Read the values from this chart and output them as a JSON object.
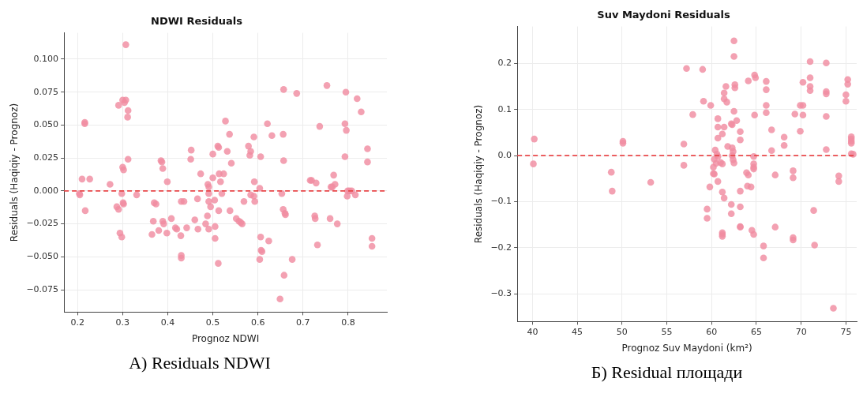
{
  "chart_data": [
    {
      "type": "scatter",
      "title": "NDWI Residuals",
      "xlabel": "Prognoz NDWI",
      "ylabel": "Residuals (Haqiqiy - Prognoz)",
      "xlim": [
        0.17,
        0.886
      ],
      "ylim": [
        -0.092,
        0.12
      ],
      "xticks": [
        0.2,
        0.3,
        0.4,
        0.5,
        0.6,
        0.7,
        0.8
      ],
      "yticks": [
        {
          "value": -0.075,
          "label": "−0.075"
        },
        {
          "value": -0.05,
          "label": "−0.050"
        },
        {
          "value": -0.025,
          "label": "−0.025"
        },
        {
          "value": 0,
          "label": "0.000"
        },
        {
          "value": 0.025,
          "label": "0.025"
        },
        {
          "value": 0.05,
          "label": "0.050"
        },
        {
          "value": 0.075,
          "label": "0.075"
        },
        {
          "value": 0.1,
          "label": "0.100"
        }
      ],
      "grid": true,
      "marker": "circle",
      "ref_lines": [
        {
          "axis": "y",
          "value": 0,
          "color": "#e8474a",
          "line_style": "dashed"
        }
      ],
      "annotations": [
        "A) Residuals NDWI"
      ],
      "series": [
        {
          "color": "#f08ca0",
          "x": [
            0.307,
            0.291,
            0.3,
            0.307,
            0.304,
            0.312,
            0.311,
            0.216,
            0.216,
            0.312,
            0.3,
            0.302,
            0.21,
            0.227,
            0.272,
            0.204,
            0.205,
            0.298,
            0.217,
            0.287,
            0.291,
            0.301,
            0.302,
            0.331,
            0.294,
            0.298,
            0.385,
            0.387,
            0.389,
            0.399,
            0.37,
            0.374,
            0.368,
            0.389,
            0.391,
            0.38,
            0.398,
            0.408,
            0.417,
            0.42,
            0.365,
            0.43,
            0.436,
            0.429,
            0.43,
            0.43,
            0.442,
            0.452,
            0.451,
            0.473,
            0.466,
            0.46,
            0.467,
            0.489,
            0.491,
            0.491,
            0.491,
            0.495,
            0.504,
            0.5,
            0.5,
            0.511,
            0.513,
            0.488,
            0.484,
            0.491,
            0.505,
            0.505,
            0.512,
            0.513,
            0.517,
            0.52,
            0.514,
            0.528,
            0.537,
            0.532,
            0.541,
            0.524,
            0.538,
            0.552,
            0.558,
            0.562,
            0.565,
            0.569,
            0.579,
            0.584,
            0.582,
            0.591,
            0.592,
            0.606,
            0.584,
            0.591,
            0.593,
            0.604,
            0.621,
            0.631,
            0.656,
            0.657,
            0.657,
            0.686,
            0.653,
            0.656,
            0.66,
            0.661,
            0.606,
            0.624,
            0.607,
            0.609,
            0.604,
            0.676,
            0.658,
            0.649,
            0.716,
            0.719,
            0.729,
            0.726,
            0.727,
            0.732,
            0.737,
            0.753,
            0.768,
            0.771,
            0.762,
            0.765,
            0.76,
            0.776,
            0.795,
            0.793,
            0.796,
            0.793,
            0.799,
            0.803,
            0.808,
            0.798,
            0.816,
            0.82,
            0.829,
            0.843,
            0.843,
            0.853,
            0.853
          ],
          "values": [
            0.111,
            0.065,
            0.069,
            0.069,
            0.067,
            0.061,
            0.056,
            0.052,
            0.051,
            0.024,
            0.018,
            0.016,
            0.009,
            0.009,
            0.005,
            -0.002,
            -0.003,
            -0.002,
            -0.015,
            -0.012,
            -0.014,
            -0.009,
            -0.01,
            -0.003,
            -0.032,
            -0.035,
            0.023,
            0.022,
            0.017,
            0.007,
            -0.009,
            -0.01,
            -0.023,
            -0.023,
            -0.025,
            -0.03,
            -0.032,
            -0.021,
            -0.028,
            -0.029,
            -0.033,
            -0.008,
            -0.008,
            -0.034,
            -0.049,
            -0.051,
            -0.028,
            0.031,
            0.024,
            0.013,
            -0.006,
            -0.022,
            -0.029,
            0.005,
            0.003,
            -0.002,
            -0.008,
            -0.012,
            -0.007,
            0.01,
            0.028,
            0.034,
            0.033,
            -0.019,
            -0.025,
            -0.029,
            -0.027,
            -0.036,
            -0.055,
            -0.015,
            0.007,
            -0.002,
            0.013,
            0.053,
            0.043,
            0.03,
            0.021,
            0.013,
            -0.015,
            -0.021,
            -0.023,
            -0.024,
            -0.025,
            -0.008,
            0.034,
            0.03,
            0.027,
            0.041,
            0.007,
            0.026,
            -0.003,
            -0.004,
            -0.008,
            0.002,
            0.051,
            0.042,
            0.043,
            0.023,
            0.077,
            0.074,
            -0.002,
            -0.014,
            -0.017,
            -0.018,
            -0.035,
            -0.038,
            -0.045,
            -0.046,
            -0.052,
            -0.052,
            -0.064,
            -0.082,
            0.008,
            0.008,
            0.006,
            -0.019,
            -0.021,
            -0.041,
            0.049,
            0.08,
            0.012,
            0.005,
            0.003,
            0.003,
            -0.021,
            -0.025,
            0.075,
            0.051,
            0.046,
            0.026,
            0,
            0,
            0,
            -0.004,
            -0.003,
            0.07,
            0.06,
            0.032,
            0.022,
            -0.036,
            -0.042
          ]
        }
      ]
    },
    {
      "type": "scatter",
      "title": "Suv Maydoni Residuals",
      "xlabel": "Prognoz Suv Maydoni (km²)",
      "ylabel": "Residuals (Haqiqiy - Prognoz)",
      "xlim": [
        38.3,
        76.2
      ],
      "ylim": [
        -0.36,
        0.28
      ],
      "xticks": [
        40,
        45,
        50,
        55,
        60,
        65,
        70,
        75
      ],
      "yticks": [
        {
          "value": -0.3,
          "label": "−0.3"
        },
        {
          "value": -0.2,
          "label": "−0.2"
        },
        {
          "value": -0.1,
          "label": "−0.1"
        },
        {
          "value": 0,
          "label": "0.0"
        },
        0.1,
        0.2
      ],
      "grid": true,
      "marker": "circle",
      "ref_lines": [
        {
          "axis": "y",
          "value": 0,
          "color": "#e8474a",
          "line_style": "dashed"
        }
      ],
      "annotations": [
        "Б) Residual площади"
      ],
      "series": [
        {
          "color": "#f08ca0",
          "x": [
            40.2,
            40.1,
            50.1,
            50.1,
            48.8,
            48.9,
            53.2,
            57.2,
            59.0,
            62.5,
            62.5,
            71.0,
            72.8,
            64.8,
            64.9,
            64.1,
            66.1,
            66.1,
            61.6,
            61.4,
            61.4,
            61.7,
            62.6,
            62.6,
            59.1,
            59.9,
            71.0,
            71.0,
            71.0,
            70.2,
            75.2,
            75.2,
            75.0,
            75.0,
            72.8,
            72.8,
            72.8,
            66.1,
            66.1,
            64.8,
            69.3,
            69.9,
            70.2,
            70.2,
            69.9,
            57.9,
            60.7,
            60.7,
            61.4,
            62.5,
            62.8,
            62.2,
            62.3,
            63.2,
            63.2,
            61.2,
            60.7,
            66.7,
            68.1,
            68.1,
            66.7,
            72.8,
            56.9,
            56.9,
            61.8,
            62.3,
            62.4,
            60.4,
            60.6,
            60.7,
            60.3,
            60.5,
            61.0,
            61.2,
            62.3,
            62.4,
            62.5,
            60.2,
            60.2,
            60.3,
            64.7,
            64.7,
            64.7,
            64.7,
            63.9,
            64.1,
            67.1,
            69.1,
            69.1,
            74.2,
            74.2,
            75.6,
            75.6,
            75.6,
            75.6,
            75.6,
            75.8,
            60.7,
            59.8,
            64.0,
            64.4,
            63.2,
            61.2,
            61.4,
            62.2,
            62.2,
            63.2,
            59.5,
            59.5,
            71.4,
            63.2,
            63.2,
            61.2,
            61.2,
            61.2,
            64.5,
            64.7,
            67.1,
            69.1,
            69.1,
            71.5,
            65.8,
            65.8,
            73.6
          ],
          "values": [
            0.036,
            -0.018,
            0.031,
            0.027,
            -0.036,
            -0.077,
            -0.058,
            0.189,
            0.187,
            0.249,
            0.215,
            0.204,
            0.201,
            0.175,
            0.169,
            0.162,
            0.161,
            0.143,
            0.15,
            0.136,
            0.123,
            0.116,
            0.154,
            0.147,
            0.118,
            0.109,
            0.169,
            0.15,
            0.141,
            0.159,
            0.165,
            0.155,
            0.132,
            0.118,
            0.139,
            0.134,
            0.085,
            0.109,
            0.093,
            0.088,
            0.09,
            0.109,
            0.109,
            0.088,
            0.053,
            0.089,
            0.08,
            0.062,
            0.062,
            0.096,
            0.076,
            0.069,
            0.067,
            0.052,
            0.034,
            0.047,
            0.038,
            0.056,
            0.04,
            0.022,
            0.011,
            0.013,
            0.025,
            -0.021,
            0.02,
            0.017,
            0.009,
            0.012,
            0.003,
            -0.002,
            -0.008,
            -0.017,
            -0.015,
            -0.018,
            0,
            -0.009,
            -0.016,
            -0.025,
            -0.039,
            -0.04,
            -0.002,
            -0.018,
            -0.025,
            -0.029,
            -0.037,
            -0.042,
            -0.042,
            -0.033,
            -0.048,
            -0.044,
            -0.056,
            0.041,
            0.036,
            0.031,
            0.027,
            0.004,
            0.003,
            -0.056,
            -0.068,
            -0.066,
            -0.068,
            -0.077,
            -0.079,
            -0.092,
            -0.106,
            -0.126,
            -0.111,
            -0.116,
            -0.136,
            -0.119,
            -0.154,
            -0.155,
            -0.167,
            -0.171,
            -0.175,
            -0.162,
            -0.171,
            -0.155,
            -0.178,
            -0.183,
            -0.194,
            -0.196,
            -0.222,
            -0.331
          ]
        }
      ]
    }
  ]
}
